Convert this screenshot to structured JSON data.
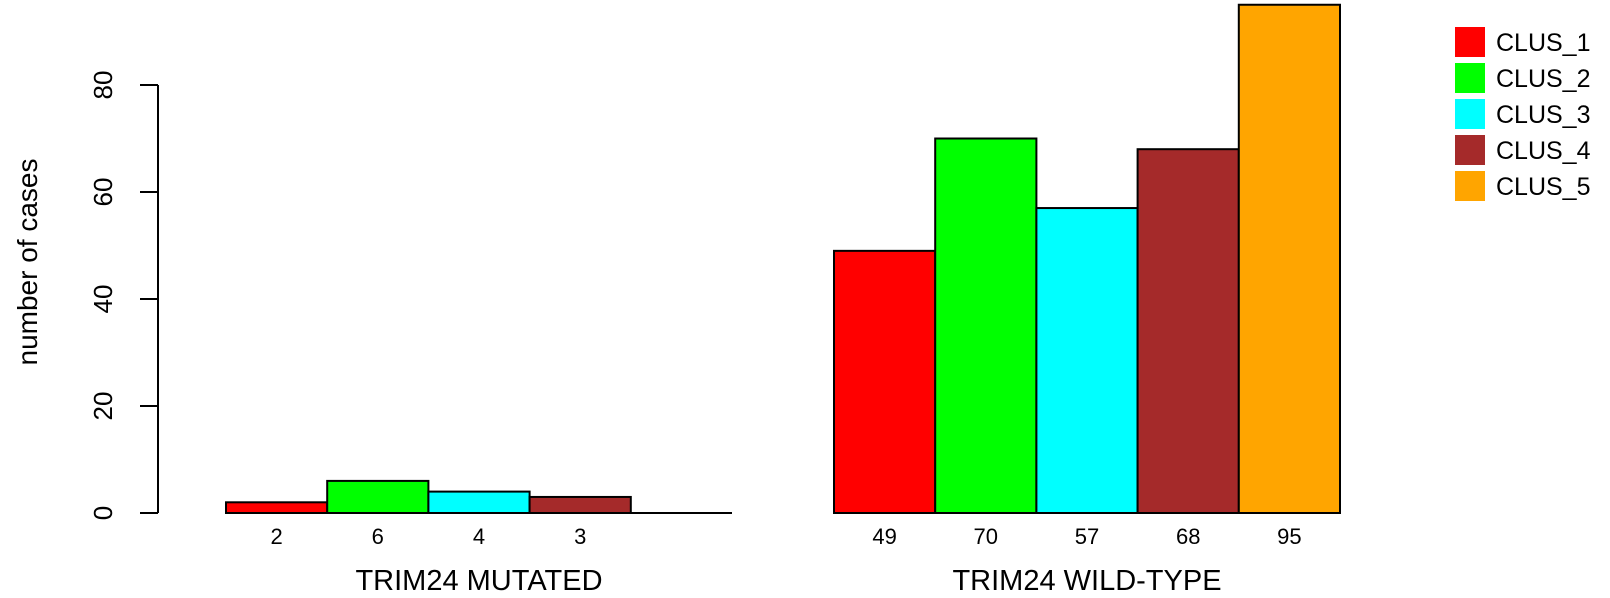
{
  "chart_data": {
    "type": "bar",
    "ylabel": "number of cases",
    "ylim": [
      0,
      95
    ],
    "yticks": [
      0,
      20,
      40,
      60,
      80
    ],
    "groups": [
      {
        "label": "TRIM24 MUTATED",
        "values": [
          2,
          6,
          4,
          3,
          0
        ],
        "value_labels": [
          "2",
          "6",
          "4",
          "3",
          ""
        ]
      },
      {
        "label": "TRIM24 WILD-TYPE",
        "values": [
          49,
          70,
          57,
          68,
          95
        ],
        "value_labels": [
          "49",
          "70",
          "57",
          "68",
          "95"
        ]
      }
    ],
    "series": [
      {
        "name": "CLUS_1",
        "color": "#FF0000"
      },
      {
        "name": "CLUS_2",
        "color": "#00FF00"
      },
      {
        "name": "CLUS_3",
        "color": "#00FFFF"
      },
      {
        "name": "CLUS_4",
        "color": "#A52A2A"
      },
      {
        "name": "CLUS_5",
        "color": "#FFA500"
      }
    ],
    "legend_position": "top-right",
    "grid": false
  }
}
